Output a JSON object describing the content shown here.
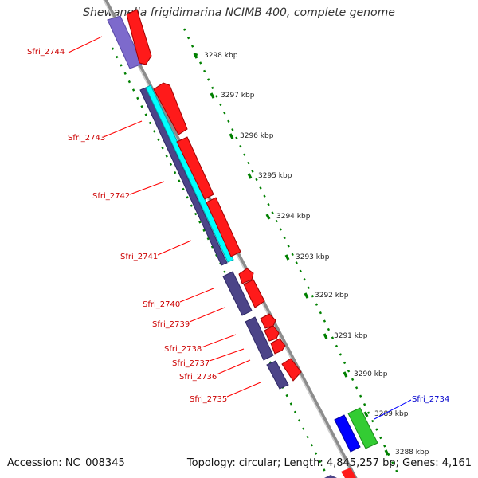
{
  "title": "Shewanella frigidimarina NCIMB 400, complete genome",
  "accession": "Accession: NC_008345",
  "summary": "Topology: circular; Length: 4,845,257 bp; Genes: 4,161",
  "colors": {
    "forward_cds": "#ff0000",
    "reverse_cds": "#4c4488",
    "tick_green": "#008000",
    "backbone": "#999999",
    "cyan_feature": "#00ffff",
    "blue_feature": "#0000ff",
    "green_feature": "#33cc33",
    "label_red": "#cc0000",
    "label_blue": "#0000cc"
  },
  "kbp_labels": [
    "3298 kbp",
    "3297 kbp",
    "3296 kbp",
    "3295 kbp",
    "3294 kbp",
    "3293 kbp",
    "3292 kbp",
    "3291 kbp",
    "3290 kbp",
    "3289 kbp",
    "3288 kbp"
  ],
  "gene_labels": [
    "Sfri_2744",
    "Sfri_2743",
    "Sfri_2742",
    "Sfri_2741",
    "Sfri_2740",
    "Sfri_2739",
    "Sfri_2738",
    "Sfri_2737",
    "Sfri_2736",
    "Sfri_2735",
    "Sfri_2734"
  ]
}
